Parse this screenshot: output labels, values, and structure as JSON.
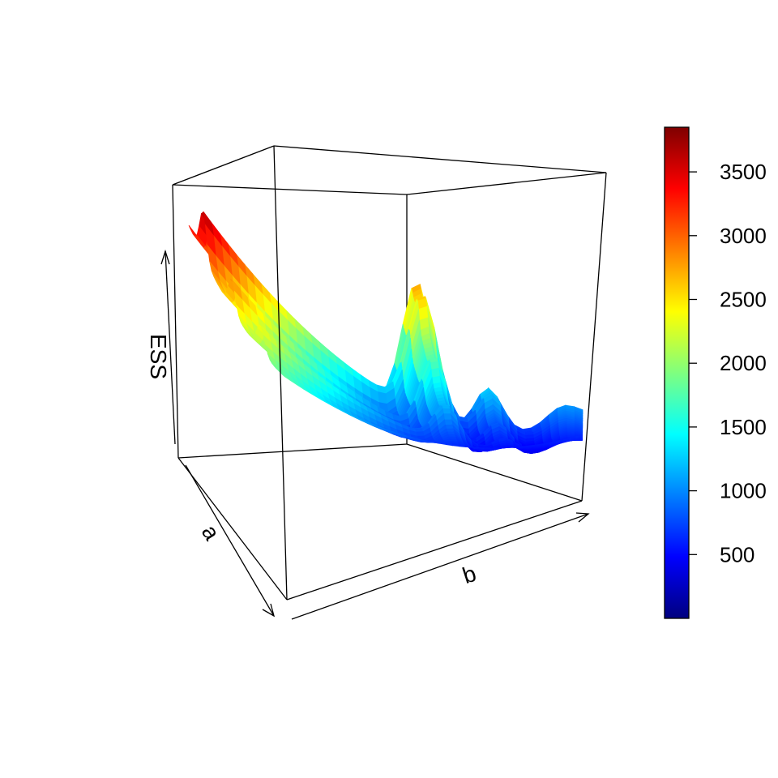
{
  "chart_data": {
    "type": "surface3d",
    "x_axis_label": "b",
    "y_axis_label": "a",
    "z_axis_label": "ESS",
    "colorbar": {
      "ticks": [
        500,
        1000,
        1500,
        2000,
        2500,
        3000,
        3500
      ],
      "tick_labels": [
        "500",
        "1000",
        "1500",
        "2000",
        "2500",
        "3000",
        "3500"
      ],
      "range": [
        0,
        3850
      ],
      "palette": [
        "#00007F",
        "#0000FF",
        "#007FFF",
        "#00FFFF",
        "#7FFF7F",
        "#FFFF00",
        "#FF7F00",
        "#FF0000",
        "#7F0000"
      ]
    },
    "surface": {
      "shape": "bowl-shaped error surface with oscillating ridges",
      "minimum_value": 30,
      "maximum_value": 3850,
      "back_edge_peaks": [
        3850,
        2450,
        2150
      ],
      "left_edge_peaks": [
        1500,
        1350,
        1250
      ]
    },
    "tick_marks_on_axes": false,
    "grid": false,
    "box": true
  }
}
